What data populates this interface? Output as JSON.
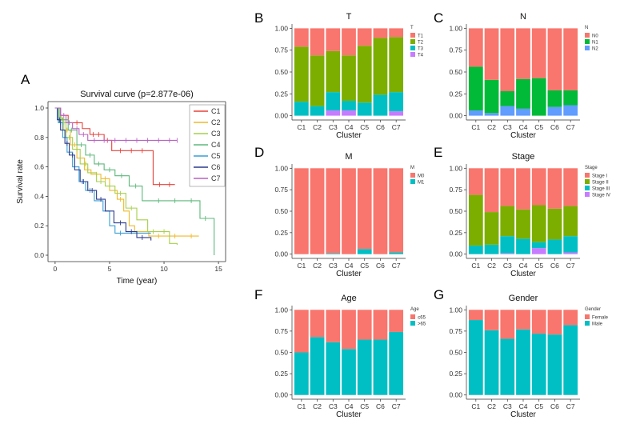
{
  "chart_data": [
    {
      "panel": "A",
      "type": "line",
      "title": "Survival curve (p=2.877e-06)",
      "xlabel": "Time (year)",
      "ylabel": "Survival rate",
      "xlim": [
        0,
        15
      ],
      "ylim": [
        0,
        1.0
      ],
      "xticks": [
        "0",
        "5",
        "10",
        "15"
      ],
      "yticks": [
        "0.0",
        "0.2",
        "0.4",
        "0.6",
        "0.8",
        "1.0"
      ],
      "series": [
        {
          "name": "C1",
          "color": "#e8423a",
          "steps": [
            [
              0,
              1.0
            ],
            [
              0.5,
              0.95
            ],
            [
              1.2,
              0.9
            ],
            [
              2.5,
              0.86
            ],
            [
              3.2,
              0.82
            ],
            [
              4.5,
              0.78
            ],
            [
              5.2,
              0.71
            ],
            [
              9,
              0.48
            ],
            [
              11,
              0.48
            ]
          ],
          "censor": [
            2,
            3.5,
            4,
            4.8,
            6,
            7,
            8,
            9.6,
            10.5
          ]
        },
        {
          "name": "C2",
          "color": "#f0b92a",
          "steps": [
            [
              0,
              1.0
            ],
            [
              0.3,
              0.93
            ],
            [
              0.8,
              0.85
            ],
            [
              1.4,
              0.75
            ],
            [
              2,
              0.66
            ],
            [
              2.7,
              0.58
            ],
            [
              3.3,
              0.55
            ],
            [
              4.2,
              0.52
            ],
            [
              5,
              0.44
            ],
            [
              5.7,
              0.38
            ],
            [
              6.3,
              0.3
            ],
            [
              6.8,
              0.2
            ],
            [
              7.3,
              0.16
            ],
            [
              8.6,
              0.13
            ],
            [
              13.2,
              0.13
            ]
          ],
          "censor": [
            0.6,
            1.1,
            1.8,
            3,
            3.8,
            4.6,
            6,
            9.5,
            11,
            12.5
          ]
        },
        {
          "name": "C3",
          "color": "#a6cf4b",
          "steps": [
            [
              0,
              1.0
            ],
            [
              0.4,
              0.9
            ],
            [
              1,
              0.8
            ],
            [
              1.6,
              0.72
            ],
            [
              2.3,
              0.62
            ],
            [
              3,
              0.56
            ],
            [
              3.8,
              0.5
            ],
            [
              4.6,
              0.47
            ],
            [
              5.5,
              0.42
            ],
            [
              6.5,
              0.32
            ],
            [
              7.5,
              0.24
            ],
            [
              8.5,
              0.16
            ],
            [
              10.5,
              0.08
            ],
            [
              11.2,
              0.07
            ]
          ],
          "censor": [
            0.8,
            1.3,
            2,
            2.8,
            4.2,
            5,
            6,
            7,
            9,
            10
          ]
        },
        {
          "name": "C4",
          "color": "#5db87b",
          "steps": [
            [
              0,
              1.0
            ],
            [
              0.5,
              0.92
            ],
            [
              1.2,
              0.85
            ],
            [
              2,
              0.75
            ],
            [
              2.8,
              0.68
            ],
            [
              3.6,
              0.62
            ],
            [
              4.5,
              0.58
            ],
            [
              5.5,
              0.54
            ],
            [
              6.8,
              0.47
            ],
            [
              8,
              0.37
            ],
            [
              13.3,
              0.25
            ],
            [
              14.6,
              0.0
            ]
          ],
          "censor": [
            0.7,
            1.5,
            2.4,
            3.2,
            4,
            5,
            6.1,
            7.4,
            9.5,
            11,
            12.5,
            13.8
          ]
        },
        {
          "name": "C5",
          "color": "#3a9fd6",
          "steps": [
            [
              0,
              1.0
            ],
            [
              0.3,
              0.9
            ],
            [
              0.7,
              0.8
            ],
            [
              1.1,
              0.7
            ],
            [
              1.6,
              0.6
            ],
            [
              2.2,
              0.5
            ],
            [
              2.8,
              0.44
            ],
            [
              3.6,
              0.37
            ],
            [
              4.4,
              0.3
            ],
            [
              5,
              0.2
            ],
            [
              5.5,
              0.15
            ],
            [
              8.8,
              0.15
            ]
          ],
          "censor": [
            0.5,
            1.3,
            2.5,
            3.2,
            6,
            7.5
          ]
        },
        {
          "name": "C6",
          "color": "#2b3a8c",
          "steps": [
            [
              0,
              1.0
            ],
            [
              0.2,
              0.92
            ],
            [
              0.5,
              0.85
            ],
            [
              0.9,
              0.76
            ],
            [
              1.3,
              0.68
            ],
            [
              1.8,
              0.58
            ],
            [
              2.3,
              0.5
            ],
            [
              3,
              0.44
            ],
            [
              3.8,
              0.38
            ],
            [
              4.6,
              0.3
            ],
            [
              5.4,
              0.22
            ],
            [
              6.5,
              0.16
            ],
            [
              7.5,
              0.12
            ],
            [
              8.8,
              0.1
            ]
          ],
          "censor": [
            0.4,
            1.1,
            1.6,
            2.6,
            3.4,
            4.2,
            6,
            7,
            8
          ]
        },
        {
          "name": "C7",
          "color": "#b862c2",
          "steps": [
            [
              0,
              1.0
            ],
            [
              0.5,
              0.95
            ],
            [
              1,
              0.9
            ],
            [
              1.6,
              0.86
            ],
            [
              2.2,
              0.82
            ],
            [
              3,
              0.78
            ],
            [
              11.2,
              0.78
            ]
          ],
          "censor": [
            0.8,
            1.3,
            2,
            2.6,
            3.6,
            4.5,
            5.5,
            6.5,
            7.5,
            8.5,
            9.5,
            10.5,
            11.2
          ]
        }
      ]
    },
    {
      "panel": "B",
      "type": "bar",
      "title": "T",
      "xlabel": "Cluster",
      "ylim": [
        0,
        1
      ],
      "yticks": [
        "0.00",
        "0.25",
        "0.50",
        "0.75",
        "1.00"
      ],
      "categories": [
        "C1",
        "C2",
        "C3",
        "C4",
        "C5",
        "C6",
        "C7"
      ],
      "legend_title": "T",
      "series": [
        {
          "name": "T4",
          "color": "#c77cff",
          "values": [
            0.0,
            0.0,
            0.06,
            0.06,
            0.0,
            0.0,
            0.05
          ]
        },
        {
          "name": "T3",
          "color": "#00bfc4",
          "values": [
            0.16,
            0.11,
            0.21,
            0.11,
            0.15,
            0.24,
            0.22
          ]
        },
        {
          "name": "T2",
          "color": "#7cae00",
          "values": [
            0.63,
            0.58,
            0.47,
            0.52,
            0.65,
            0.65,
            0.63
          ]
        },
        {
          "name": "T1",
          "color": "#f8766d",
          "values": [
            0.21,
            0.31,
            0.26,
            0.31,
            0.2,
            0.11,
            0.1
          ]
        }
      ]
    },
    {
      "panel": "C",
      "type": "bar",
      "title": "N",
      "xlabel": "Cluster",
      "ylim": [
        0,
        1
      ],
      "yticks": [
        "0.00",
        "0.25",
        "0.50",
        "0.75",
        "1.00"
      ],
      "categories": [
        "C1",
        "C2",
        "C3",
        "C4",
        "C5",
        "C6",
        "C7"
      ],
      "legend_title": "N",
      "series": [
        {
          "name": "N2",
          "color": "#619cff",
          "values": [
            0.06,
            0.03,
            0.11,
            0.08,
            0.0,
            0.1,
            0.12
          ]
        },
        {
          "name": "N1",
          "color": "#00ba38",
          "values": [
            0.5,
            0.38,
            0.17,
            0.34,
            0.43,
            0.19,
            0.17
          ]
        },
        {
          "name": "N0",
          "color": "#f8766d",
          "values": [
            0.44,
            0.59,
            0.72,
            0.58,
            0.57,
            0.71,
            0.71
          ]
        }
      ]
    },
    {
      "panel": "D",
      "type": "bar",
      "title": "M",
      "xlabel": "Cluster",
      "ylim": [
        0,
        1
      ],
      "yticks": [
        "0.00",
        "0.25",
        "0.50",
        "0.75",
        "1.00"
      ],
      "categories": [
        "C1",
        "C2",
        "C3",
        "C4",
        "C5",
        "C6",
        "C7"
      ],
      "legend_title": "M",
      "series": [
        {
          "name": "M1",
          "color": "#00bfc4",
          "values": [
            0.0,
            0.0,
            0.01,
            0.0,
            0.06,
            0.0,
            0.02
          ]
        },
        {
          "name": "M0",
          "color": "#f8766d",
          "values": [
            1.0,
            1.0,
            0.99,
            1.0,
            0.94,
            1.0,
            0.98
          ]
        }
      ]
    },
    {
      "panel": "E",
      "type": "bar",
      "title": "Stage",
      "xlabel": "Cluster",
      "ylim": [
        0,
        1
      ],
      "yticks": [
        "0.00",
        "0.25",
        "0.50",
        "0.75",
        "1.00"
      ],
      "categories": [
        "C1",
        "C2",
        "C3",
        "C4",
        "C5",
        "C6",
        "C7"
      ],
      "legend_title": "Stage",
      "series": [
        {
          "name": "Stage IV",
          "color": "#c77cff",
          "values": [
            0.0,
            0.0,
            0.01,
            0.0,
            0.07,
            0.0,
            0.02
          ]
        },
        {
          "name": "Stage III",
          "color": "#00bfc4",
          "values": [
            0.1,
            0.11,
            0.2,
            0.18,
            0.07,
            0.17,
            0.19
          ]
        },
        {
          "name": "Stage II",
          "color": "#7cae00",
          "values": [
            0.59,
            0.38,
            0.35,
            0.34,
            0.43,
            0.36,
            0.35
          ]
        },
        {
          "name": "Stage I",
          "color": "#f8766d",
          "values": [
            0.31,
            0.51,
            0.44,
            0.48,
            0.43,
            0.47,
            0.44
          ]
        }
      ]
    },
    {
      "panel": "F",
      "type": "bar",
      "title": "Age",
      "xlabel": "Cluster",
      "ylim": [
        0,
        1
      ],
      "yticks": [
        "0.00",
        "0.25",
        "0.50",
        "0.75",
        "1.00"
      ],
      "categories": [
        "C1",
        "C2",
        "C3",
        "C4",
        "C5",
        "C6",
        "C7"
      ],
      "legend_title": "Age",
      "series": [
        {
          "name": ">65",
          "color": "#00bfc4",
          "values": [
            0.5,
            0.68,
            0.62,
            0.54,
            0.65,
            0.65,
            0.74
          ]
        },
        {
          "name": "≤65",
          "color": "#f8766d",
          "values": [
            0.5,
            0.32,
            0.38,
            0.46,
            0.35,
            0.35,
            0.26
          ]
        }
      ]
    },
    {
      "panel": "G",
      "type": "bar",
      "title": "Gender",
      "xlabel": "Cluster",
      "ylim": [
        0,
        1
      ],
      "yticks": [
        "0.00",
        "0.25",
        "0.50",
        "0.75",
        "1.00"
      ],
      "categories": [
        "C1",
        "C2",
        "C3",
        "C4",
        "C5",
        "C6",
        "C7"
      ],
      "legend_title": "Gender",
      "series": [
        {
          "name": "Male",
          "color": "#00bfc4",
          "values": [
            0.88,
            0.76,
            0.66,
            0.77,
            0.72,
            0.71,
            0.82
          ]
        },
        {
          "name": "Female",
          "color": "#f8766d",
          "values": [
            0.12,
            0.24,
            0.34,
            0.23,
            0.28,
            0.29,
            0.18
          ]
        }
      ]
    }
  ]
}
